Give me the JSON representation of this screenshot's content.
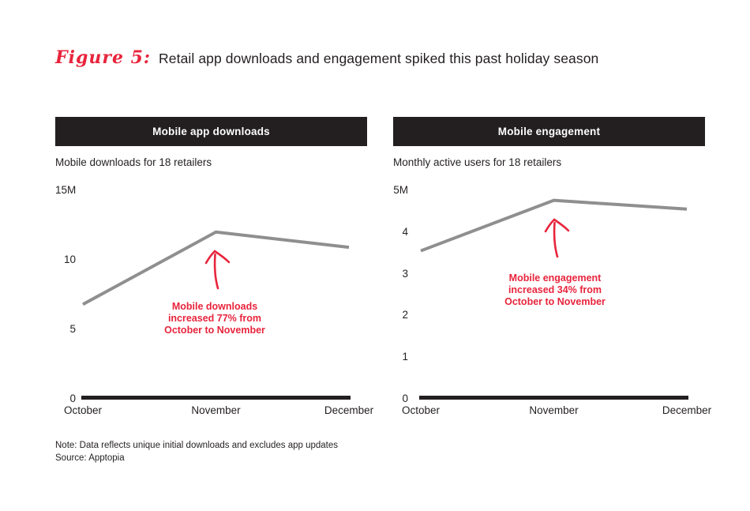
{
  "page": {
    "title_prefix": "Figure 5:",
    "title": "Retail app downloads and engagement spiked this past holiday season",
    "note": "Note: Data reflects unique initial downloads and excludes app updates",
    "source": "Source: Apptopia"
  },
  "colors": {
    "accent_red": "#e8243c",
    "ink": "#231f20",
    "line_gray": "#8f8f8f",
    "header_text": "#ffffff"
  },
  "chart_data": [
    {
      "type": "line",
      "title": "Mobile app downloads",
      "subtitle": "Mobile downloads for 18 retailers",
      "categories": [
        "October",
        "November",
        "December"
      ],
      "values": [
        6.8,
        12.0,
        10.9
      ],
      "ylim": [
        0,
        15
      ],
      "yticks": [
        {
          "value": 15,
          "label": "15M"
        },
        {
          "value": 10,
          "label": "10"
        },
        {
          "value": 5,
          "label": "5"
        },
        {
          "value": 0,
          "label": "0"
        }
      ],
      "grid": false,
      "legend": "none",
      "line_color": "#8f8f8f",
      "annotation_lines": [
        "Mobile downloads",
        "increased 77% from",
        "October to November"
      ]
    },
    {
      "type": "line",
      "title": "Mobile engagement",
      "subtitle": "Monthly active users for 18 retailers",
      "categories": [
        "October",
        "November",
        "December"
      ],
      "values": [
        3.55,
        4.76,
        4.55
      ],
      "ylim": [
        0,
        5
      ],
      "yticks": [
        {
          "value": 5,
          "label": "5M"
        },
        {
          "value": 4,
          "label": "4"
        },
        {
          "value": 3,
          "label": "3"
        },
        {
          "value": 2,
          "label": "2"
        },
        {
          "value": 1,
          "label": "1"
        },
        {
          "value": 0,
          "label": "0"
        }
      ],
      "grid": false,
      "legend": "none",
      "line_color": "#8f8f8f",
      "annotation_lines": [
        "Mobile engagement",
        "increased 34% from",
        "October to November"
      ]
    }
  ]
}
